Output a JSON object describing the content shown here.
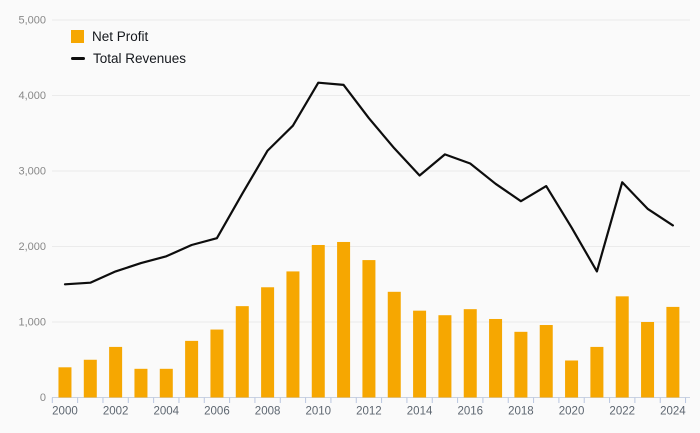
{
  "chart_data": {
    "type": "combo",
    "title": "",
    "xlabel": "",
    "ylabel": "",
    "categories": [
      2000,
      2001,
      2002,
      2003,
      2004,
      2005,
      2006,
      2007,
      2008,
      2009,
      2010,
      2011,
      2012,
      2013,
      2014,
      2015,
      2016,
      2017,
      2018,
      2019,
      2020,
      2021,
      2022,
      2023,
      2024
    ],
    "series": [
      {
        "name": "Net Profit",
        "type": "bar",
        "color": "#f6a701",
        "values": [
          400,
          500,
          670,
          380,
          380,
          750,
          900,
          1210,
          1460,
          1670,
          2020,
          2060,
          1820,
          1400,
          1150,
          1090,
          1170,
          1040,
          870,
          960,
          490,
          670,
          1340,
          1000,
          1200
        ]
      },
      {
        "name": "Total Revenues",
        "type": "line",
        "color": "#0d0d0d",
        "values": [
          1500,
          1520,
          1670,
          1780,
          1870,
          2020,
          2110,
          2700,
          3270,
          3600,
          4170,
          4140,
          3700,
          3300,
          2940,
          3220,
          3100,
          2830,
          2600,
          2800,
          2250,
          1670,
          2850,
          2500,
          2280
        ]
      }
    ],
    "ylim": [
      0,
      5000
    ],
    "y_ticks": [
      "0",
      "1,000",
      "2,000",
      "3,000",
      "4,000",
      "5,000"
    ],
    "y_tick_values": [
      0,
      1000,
      2000,
      3000,
      4000,
      5000
    ],
    "x_tick_labels": [
      "2000",
      "2002",
      "2004",
      "2006",
      "2008",
      "2010",
      "2012",
      "2014",
      "2016",
      "2018",
      "2020",
      "2022",
      "2024"
    ],
    "grid": true,
    "legend_position": "top-left"
  },
  "colors": {
    "background": "#fafafa",
    "gridline": "#ebebeb",
    "axis_line": "#c9d2e2",
    "tick_mark": "#b9c6e0",
    "y_label": "#888888",
    "x_label": "#5d6670",
    "bar": "#f6a701",
    "line": "#0d0d0d"
  }
}
